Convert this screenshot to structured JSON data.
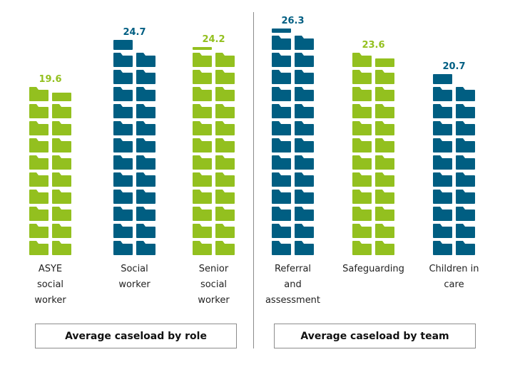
{
  "chart_data": {
    "type": "bar",
    "style": "pictogram (each folder icon = 1 case, stacked in pairs)",
    "colors": {
      "green": "#93c01f",
      "blue": "#005e82"
    },
    "groups": [
      {
        "label": "Average caseload by role",
        "categories": [
          {
            "label": [
              "ASYE",
              "social",
              "worker"
            ],
            "value": 19.6,
            "color": "green"
          },
          {
            "label": [
              "Social",
              "worker"
            ],
            "value": 24.7,
            "color": "blue"
          },
          {
            "label": [
              "Senior",
              "social",
              "worker"
            ],
            "value": 24.2,
            "color": "green"
          }
        ]
      },
      {
        "label": "Average caseload by team",
        "categories": [
          {
            "label": [
              "Referral",
              "and",
              "assessment"
            ],
            "value": 26.3,
            "color": "blue"
          },
          {
            "label": [
              "Safeguarding"
            ],
            "value": 23.6,
            "color": "green"
          },
          {
            "label": [
              "Children in",
              "care"
            ],
            "value": 20.7,
            "color": "blue"
          }
        ]
      }
    ]
  }
}
